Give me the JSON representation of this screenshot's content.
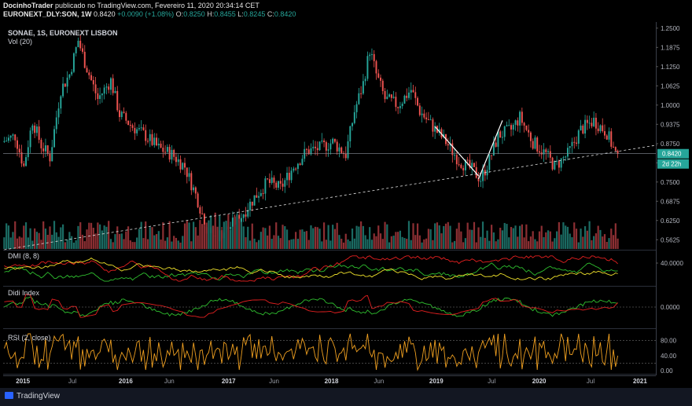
{
  "header": {
    "publisher": "DocinhoTrader",
    "published_line": "publicado no TradingView.com, Fevereiro 11, 2020 20:34:14 CET",
    "symbol": "EURONEXT_DLY:SON, 1W",
    "last": "0.8420",
    "change": "+0.0090 (+1.08%)",
    "o_label": "O:",
    "o_val": "0.8250",
    "h_label": "H:",
    "h_val": "0.8455",
    "l_label": "L:",
    "l_val": "0.8245",
    "c_label": "C:",
    "c_val": "0.8420"
  },
  "main_title": "SONAE, 1S, EURONEXT LISBON",
  "vol_title": "Vol (20)",
  "dmi_title": "DMI (8, 8)",
  "didi_title": "Didi Index",
  "rsi_title": "RSI (2, close)",
  "price_badge": "0.8420",
  "countdown_badge": "2d 22h",
  "footer_brand": "TradingView",
  "colors": {
    "up": "#26a69a",
    "down": "#ef5350",
    "vol_up": "#1b6b63",
    "vol_down": "#8c2f33",
    "adx": "#f0e22b",
    "di_plus": "#2fbf2f",
    "di_minus": "#e62020",
    "didi_fast": "#2fbf2f",
    "didi_slow": "#e62020",
    "rsi": "#f0a020"
  },
  "chart_data": {
    "type": "candlestick",
    "timeframe": "1W",
    "price_axis": [
      "1.2500",
      "1.1875",
      "1.1250",
      "1.0625",
      "1.0000",
      "0.9375",
      "0.8750",
      "0.8125",
      "0.7500",
      "0.6875",
      "0.6250",
      "0.5625"
    ],
    "price_ylim": [
      0.53,
      1.27
    ],
    "x_ticks": [
      "2015",
      "Jul",
      "2016",
      "Jun",
      "2017",
      "Jun",
      "2018",
      "Jun",
      "2019",
      "Jul",
      "2020",
      "Jul",
      "2021"
    ],
    "dmi_axis": [
      "40.0000"
    ],
    "didi_axis": [
      "0.0000"
    ],
    "rsi_axis": [
      "80.00",
      "40.00",
      "0.00"
    ],
    "last_close": 0.842,
    "price_path": [
      [
        0,
        0.88
      ],
      [
        6,
        0.9
      ],
      [
        10,
        0.8
      ],
      [
        14,
        0.95
      ],
      [
        18,
        0.87
      ],
      [
        22,
        0.83
      ],
      [
        27,
        1.05
      ],
      [
        31,
        1.1
      ],
      [
        35,
        1.21
      ],
      [
        38,
        1.14
      ],
      [
        44,
        1.02
      ],
      [
        50,
        1.08
      ],
      [
        54,
        0.97
      ],
      [
        60,
        0.93
      ],
      [
        66,
        0.9
      ],
      [
        72,
        0.86
      ],
      [
        78,
        0.84
      ],
      [
        84,
        0.8
      ],
      [
        90,
        0.69
      ],
      [
        94,
        0.6
      ],
      [
        98,
        0.57
      ],
      [
        104,
        0.6
      ],
      [
        110,
        0.64
      ],
      [
        116,
        0.7
      ],
      [
        122,
        0.75
      ],
      [
        128,
        0.73
      ],
      [
        134,
        0.8
      ],
      [
        140,
        0.85
      ],
      [
        146,
        0.86
      ],
      [
        152,
        0.88
      ],
      [
        158,
        0.84
      ],
      [
        162,
        0.98
      ],
      [
        166,
        1.07
      ],
      [
        169,
        1.18
      ],
      [
        172,
        1.1
      ],
      [
        176,
        1.02
      ],
      [
        182,
        1.0
      ],
      [
        188,
        1.05
      ],
      [
        192,
        0.98
      ],
      [
        198,
        0.93
      ],
      [
        204,
        0.88
      ],
      [
        210,
        0.82
      ],
      [
        216,
        0.79
      ],
      [
        220,
        0.76
      ],
      [
        224,
        0.82
      ],
      [
        228,
        0.9
      ],
      [
        234,
        0.92
      ],
      [
        238,
        0.96
      ],
      [
        244,
        0.88
      ],
      [
        250,
        0.84
      ],
      [
        254,
        0.8
      ],
      [
        260,
        0.84
      ],
      [
        266,
        0.92
      ],
      [
        272,
        0.95
      ],
      [
        278,
        0.91
      ],
      [
        282,
        0.842
      ]
    ],
    "trendline": {
      "from": [
        0,
        0.53
      ],
      "to": [
        300,
        0.87
      ]
    },
    "annotation_lines": [
      {
        "from": [
          198,
          0.93
        ],
        "to": [
          218,
          0.77
        ]
      },
      {
        "from": [
          218,
          0.76
        ],
        "to": [
          229,
          0.95
        ]
      }
    ]
  }
}
